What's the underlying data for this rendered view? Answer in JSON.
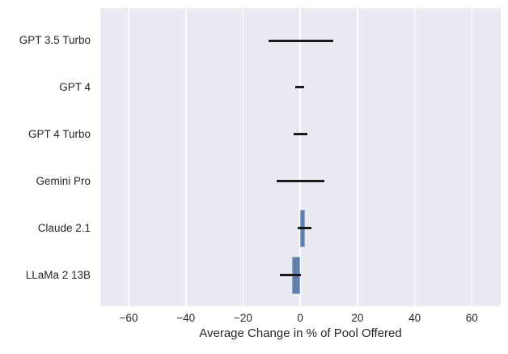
{
  "chart_data": {
    "type": "bar",
    "orientation": "horizontal",
    "title": "",
    "xlabel": "Average Change in % of Pool Offered",
    "ylabel": "",
    "categories": [
      "GPT 3.5 Turbo",
      "GPT 4",
      "GPT 4 Turbo",
      "Gemini Pro",
      "Claude 2.1",
      "LLaMa 2 13B"
    ],
    "values": [
      0.2,
      -0.2,
      0.0,
      0.1,
      1.8,
      -3.0
    ],
    "error_low": [
      -11.1,
      -1.8,
      -2.4,
      -8.2,
      -0.9,
      -7.0
    ],
    "error_high": [
      11.5,
      1.4,
      2.5,
      8.5,
      3.8,
      0.2
    ],
    "xlim": [
      -69.9,
      70.1
    ],
    "xticks": [
      -60,
      -40,
      -20,
      0,
      20,
      40,
      60
    ],
    "xtick_labels": [
      "−60",
      "−40",
      "−20",
      "0",
      "20",
      "40",
      "60"
    ],
    "grid": true,
    "legend": false,
    "style": {
      "figure_background": "#FFFFFF",
      "axes_background": "#EAEAF2",
      "grid_color": "#FFFFFF",
      "bar_color": "#6080AE",
      "bar_edge_color": "#93A7C9",
      "error_bar_color": "#1A1A1A",
      "text_color": "#262626"
    }
  }
}
